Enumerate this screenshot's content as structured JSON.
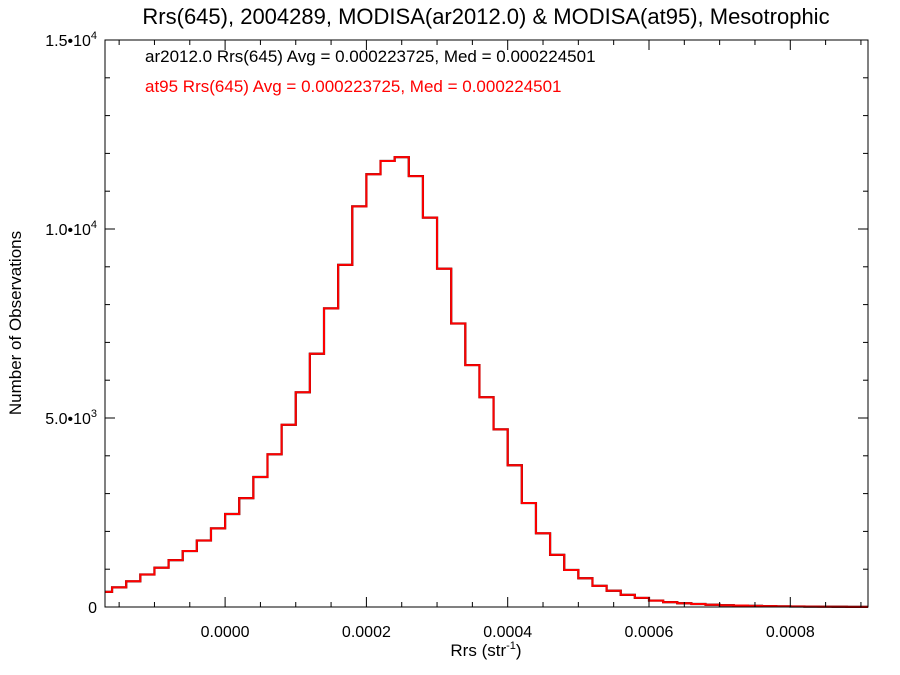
{
  "chart_data": {
    "type": "histogram-step",
    "title": "Rrs(645), 2004289, MODISA(ar2012.0) & MODISA(at95), Mesotrophic",
    "xlabel_main": "Rrs (str",
    "xlabel_sup": "-1",
    "xlabel_end": ")",
    "ylabel": "Number of Observations",
    "xlim": [
      -0.00017,
      0.00091
    ],
    "ylim": [
      0,
      15000
    ],
    "x_ticks": [
      {
        "value": 0.0,
        "label": "0.0000"
      },
      {
        "value": 0.0002,
        "label": "0.0002"
      },
      {
        "value": 0.0004,
        "label": "0.0004"
      },
      {
        "value": 0.0006,
        "label": "0.0006"
      },
      {
        "value": 0.0008,
        "label": "0.0008"
      }
    ],
    "y_ticks": [
      {
        "value": 0,
        "base": "0",
        "exp": ""
      },
      {
        "value": 5000,
        "base": "5.0•10",
        "exp": "3"
      },
      {
        "value": 10000,
        "base": "1.0•10",
        "exp": "4"
      },
      {
        "value": 15000,
        "base": "1.5•10",
        "exp": "4"
      }
    ],
    "annotations": [
      {
        "text": "ar2012.0 Rrs(645) Avg = 0.000223725, Med = 0.000224501",
        "color": "#000000"
      },
      {
        "text": "at95 Rrs(645) Avg = 0.000223725, Med = 0.000224501",
        "color": "#ff0000"
      }
    ],
    "series": [
      {
        "name": "ar2012.0",
        "color": "#000000",
        "x": [
          -0.00017,
          -0.00015,
          -0.00013,
          -0.00011,
          -9e-05,
          -7e-05,
          -5e-05,
          -3e-05,
          -1e-05,
          1e-05,
          3e-05,
          5e-05,
          7e-05,
          9e-05,
          0.00011,
          0.00013,
          0.00015,
          0.00017,
          0.00019,
          0.00021,
          0.00023,
          0.00025,
          0.00027,
          0.00029,
          0.00031,
          0.00033,
          0.00035,
          0.00037,
          0.00039,
          0.00041,
          0.00043,
          0.00045,
          0.00047,
          0.00049,
          0.00051,
          0.00053,
          0.00055,
          0.00057,
          0.00059,
          0.00061,
          0.00063,
          0.00065,
          0.00067,
          0.00069,
          0.00071,
          0.00073,
          0.00075,
          0.00077,
          0.00079,
          0.00081,
          0.00083,
          0.00085,
          0.00087,
          0.00089,
          0.00091
        ],
        "values": [
          400,
          520,
          680,
          860,
          1040,
          1240,
          1480,
          1760,
          2080,
          2460,
          2880,
          3440,
          4040,
          4820,
          5680,
          6700,
          7900,
          9050,
          10600,
          11450,
          11800,
          11900,
          11400,
          10300,
          8950,
          7500,
          6400,
          5550,
          4700,
          3750,
          2750,
          1950,
          1380,
          980,
          760,
          560,
          430,
          320,
          240,
          170,
          130,
          100,
          80,
          60,
          48,
          38,
          30,
          24,
          18,
          14,
          10,
          8,
          6,
          4,
          3
        ]
      },
      {
        "name": "at95",
        "color": "#ff0000",
        "x": [
          -0.00017,
          -0.00015,
          -0.00013,
          -0.00011,
          -9e-05,
          -7e-05,
          -5e-05,
          -3e-05,
          -1e-05,
          1e-05,
          3e-05,
          5e-05,
          7e-05,
          9e-05,
          0.00011,
          0.00013,
          0.00015,
          0.00017,
          0.00019,
          0.00021,
          0.00023,
          0.00025,
          0.00027,
          0.00029,
          0.00031,
          0.00033,
          0.00035,
          0.00037,
          0.00039,
          0.00041,
          0.00043,
          0.00045,
          0.00047,
          0.00049,
          0.00051,
          0.00053,
          0.00055,
          0.00057,
          0.00059,
          0.00061,
          0.00063,
          0.00065,
          0.00067,
          0.00069,
          0.00071,
          0.00073,
          0.00075,
          0.00077,
          0.00079,
          0.00081,
          0.00083,
          0.00085,
          0.00087,
          0.00089,
          0.00091
        ],
        "values": [
          400,
          520,
          680,
          860,
          1040,
          1240,
          1480,
          1760,
          2080,
          2460,
          2880,
          3440,
          4040,
          4820,
          5680,
          6700,
          7900,
          9050,
          10600,
          11450,
          11800,
          11900,
          11400,
          10300,
          8950,
          7500,
          6400,
          5550,
          4700,
          3750,
          2750,
          1950,
          1380,
          980,
          760,
          560,
          430,
          320,
          240,
          170,
          130,
          100,
          80,
          60,
          48,
          38,
          30,
          24,
          18,
          14,
          10,
          8,
          6,
          4,
          3
        ]
      }
    ],
    "grid": false,
    "colors": {
      "primary": "#000000",
      "secondary": "#ff0000",
      "background": "#ffffff"
    }
  }
}
